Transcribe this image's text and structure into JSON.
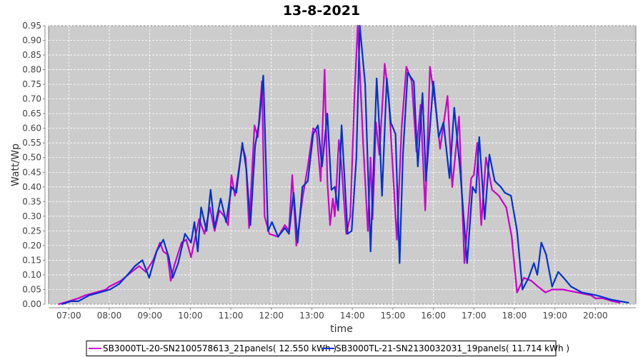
{
  "chart_data": {
    "type": "line",
    "title": "13-8-2021",
    "xlabel": "time",
    "ylabel": "Watt/Wp",
    "xlim": [
      "06:30",
      "21:00"
    ],
    "ylim": [
      0,
      0.95
    ],
    "x_ticks": [
      "07:00",
      "08:00",
      "09:00",
      "10:00",
      "11:00",
      "12:00",
      "13:00",
      "14:00",
      "15:00",
      "16:00",
      "17:00",
      "18:00",
      "19:00",
      "20:00"
    ],
    "y_ticks": [
      "0.00",
      "0.05",
      "0.10",
      "0.15",
      "0.20",
      "0.25",
      "0.30",
      "0.35",
      "0.40",
      "0.45",
      "0.50",
      "0.55",
      "0.60",
      "0.65",
      "0.70",
      "0.75",
      "0.80",
      "0.85",
      "0.90",
      "0.95"
    ],
    "grid": true,
    "background": "#cccccc",
    "legend_position": "bottom",
    "series": [
      {
        "name": "SB3000TL-20-SN2100578613_21panels( 12.550 kWh )",
        "color": "#cc00cc",
        "points": [
          [
            "06:45",
            0
          ],
          [
            "07:00",
            0.01
          ],
          [
            "07:14",
            0.02
          ],
          [
            "07:24",
            0.03
          ],
          [
            "07:40",
            0.04
          ],
          [
            "07:55",
            0.05
          ],
          [
            "08:00",
            0.06
          ],
          [
            "08:17",
            0.08
          ],
          [
            "08:33",
            0.11
          ],
          [
            "08:44",
            0.13
          ],
          [
            "08:54",
            0.11
          ],
          [
            "09:05",
            0.15
          ],
          [
            "09:15",
            0.21
          ],
          [
            "09:20",
            0.18
          ],
          [
            "09:26",
            0.17
          ],
          [
            "09:31",
            0.08
          ],
          [
            "09:36",
            0.13
          ],
          [
            "09:47",
            0.21
          ],
          [
            "09:54",
            0.22
          ],
          [
            "10:01",
            0.16
          ],
          [
            "10:13",
            0.29
          ],
          [
            "10:21",
            0.24
          ],
          [
            "10:29",
            0.33
          ],
          [
            "10:36",
            0.25
          ],
          [
            "10:43",
            0.32
          ],
          [
            "10:50",
            0.3
          ],
          [
            "10:56",
            0.27
          ],
          [
            "11:01",
            0.44
          ],
          [
            "11:06",
            0.37
          ],
          [
            "11:17",
            0.54
          ],
          [
            "11:22",
            0.5
          ],
          [
            "11:27",
            0.26
          ],
          [
            "11:35",
            0.61
          ],
          [
            "11:40",
            0.57
          ],
          [
            "11:46",
            0.76
          ],
          [
            "11:50",
            0.3
          ],
          [
            "11:57",
            0.24
          ],
          [
            "12:10",
            0.23
          ],
          [
            "12:20",
            0.27
          ],
          [
            "12:26",
            0.25
          ],
          [
            "12:31",
            0.44
          ],
          [
            "12:37",
            0.2
          ],
          [
            "12:46",
            0.36
          ],
          [
            "12:54",
            0.47
          ],
          [
            "13:02",
            0.6
          ],
          [
            "13:07",
            0.59
          ],
          [
            "13:13",
            0.42
          ],
          [
            "13:19",
            0.8
          ],
          [
            "13:23",
            0.42
          ],
          [
            "13:27",
            0.27
          ],
          [
            "13:31",
            0.36
          ],
          [
            "13:34",
            0.3
          ],
          [
            "13:40",
            0.56
          ],
          [
            "13:44",
            0.47
          ],
          [
            "13:51",
            0.24
          ],
          [
            "13:57",
            0.3
          ],
          [
            "14:03",
            0.7
          ],
          [
            "14:08",
            0.95
          ],
          [
            "14:16",
            0.55
          ],
          [
            "14:23",
            0.25
          ],
          [
            "14:27",
            0.5
          ],
          [
            "14:30",
            0.29
          ],
          [
            "14:35",
            0.62
          ],
          [
            "14:40",
            0.51
          ],
          [
            "14:48",
            0.82
          ],
          [
            "14:54",
            0.7
          ],
          [
            "15:01",
            0.42
          ],
          [
            "15:06",
            0.22
          ],
          [
            "15:13",
            0.6
          ],
          [
            "15:20",
            0.81
          ],
          [
            "15:28",
            0.76
          ],
          [
            "15:35",
            0.52
          ],
          [
            "15:41",
            0.68
          ],
          [
            "15:48",
            0.32
          ],
          [
            "15:55",
            0.81
          ],
          [
            "16:03",
            0.68
          ],
          [
            "16:10",
            0.53
          ],
          [
            "16:21",
            0.71
          ],
          [
            "16:28",
            0.4
          ],
          [
            "16:38",
            0.64
          ],
          [
            "16:46",
            0.14
          ],
          [
            "16:56",
            0.43
          ],
          [
            "17:00",
            0.44
          ],
          [
            "17:05",
            0.55
          ],
          [
            "17:11",
            0.27
          ],
          [
            "17:18",
            0.5
          ],
          [
            "17:27",
            0.39
          ],
          [
            "17:37",
            0.37
          ],
          [
            "17:48",
            0.33
          ],
          [
            "17:56",
            0.23
          ],
          [
            "18:04",
            0.04
          ],
          [
            "18:14",
            0.09
          ],
          [
            "18:25",
            0.08
          ],
          [
            "18:35",
            0.06
          ],
          [
            "18:46",
            0.04
          ],
          [
            "18:56",
            0.05
          ],
          [
            "19:12",
            0.05
          ],
          [
            "19:33",
            0.04
          ],
          [
            "19:54",
            0.03
          ],
          [
            "20:00",
            0.02
          ],
          [
            "20:11",
            0.02
          ],
          [
            "20:26",
            0.01
          ],
          [
            "20:36",
            0.005
          ]
        ]
      },
      {
        "name": "SB3000TL-21-SN2130032031_19panels( 11.714 kWh )",
        "color": "#0033cc",
        "points": [
          [
            "06:50",
            0
          ],
          [
            "07:03",
            0.01
          ],
          [
            "07:14",
            0.01
          ],
          [
            "07:30",
            0.03
          ],
          [
            "07:46",
            0.04
          ],
          [
            "08:01",
            0.05
          ],
          [
            "08:15",
            0.07
          ],
          [
            "08:27",
            0.1
          ],
          [
            "08:38",
            0.13
          ],
          [
            "08:49",
            0.15
          ],
          [
            "08:59",
            0.09
          ],
          [
            "09:10",
            0.18
          ],
          [
            "09:20",
            0.22
          ],
          [
            "09:28",
            0.16
          ],
          [
            "09:34",
            0.09
          ],
          [
            "09:42",
            0.14
          ],
          [
            "09:52",
            0.24
          ],
          [
            "10:01",
            0.21
          ],
          [
            "10:06",
            0.28
          ],
          [
            "10:11",
            0.18
          ],
          [
            "10:16",
            0.33
          ],
          [
            "10:24",
            0.25
          ],
          [
            "10:30",
            0.39
          ],
          [
            "10:36",
            0.26
          ],
          [
            "10:45",
            0.36
          ],
          [
            "10:53",
            0.28
          ],
          [
            "11:01",
            0.4
          ],
          [
            "11:08",
            0.38
          ],
          [
            "11:17",
            0.55
          ],
          [
            "11:23",
            0.46
          ],
          [
            "11:29",
            0.27
          ],
          [
            "11:36",
            0.54
          ],
          [
            "11:42",
            0.62
          ],
          [
            "11:48",
            0.78
          ],
          [
            "11:55",
            0.25
          ],
          [
            "12:01",
            0.28
          ],
          [
            "12:10",
            0.23
          ],
          [
            "12:20",
            0.26
          ],
          [
            "12:26",
            0.24
          ],
          [
            "12:33",
            0.38
          ],
          [
            "12:39",
            0.21
          ],
          [
            "12:46",
            0.4
          ],
          [
            "12:54",
            0.42
          ],
          [
            "13:02",
            0.58
          ],
          [
            "13:09",
            0.61
          ],
          [
            "13:15",
            0.47
          ],
          [
            "13:23",
            0.65
          ],
          [
            "13:29",
            0.39
          ],
          [
            "13:34",
            0.4
          ],
          [
            "13:39",
            0.32
          ],
          [
            "13:44",
            0.61
          ],
          [
            "13:53",
            0.24
          ],
          [
            "13:59",
            0.25
          ],
          [
            "14:06",
            0.5
          ],
          [
            "14:11",
            0.95
          ],
          [
            "14:19",
            0.75
          ],
          [
            "14:27",
            0.18
          ],
          [
            "14:36",
            0.77
          ],
          [
            "14:40",
            0.6
          ],
          [
            "14:44",
            0.37
          ],
          [
            "14:51",
            0.77
          ],
          [
            "14:57",
            0.62
          ],
          [
            "15:04",
            0.58
          ],
          [
            "15:10",
            0.14
          ],
          [
            "15:15",
            0.51
          ],
          [
            "15:22",
            0.79
          ],
          [
            "15:31",
            0.76
          ],
          [
            "15:37",
            0.47
          ],
          [
            "15:44",
            0.72
          ],
          [
            "15:49",
            0.42
          ],
          [
            "16:00",
            0.76
          ],
          [
            "16:08",
            0.57
          ],
          [
            "16:15",
            0.62
          ],
          [
            "16:24",
            0.43
          ],
          [
            "16:31",
            0.67
          ],
          [
            "16:40",
            0.45
          ],
          [
            "16:50",
            0.14
          ],
          [
            "16:58",
            0.4
          ],
          [
            "17:03",
            0.38
          ],
          [
            "17:08",
            0.57
          ],
          [
            "17:16",
            0.29
          ],
          [
            "17:23",
            0.51
          ],
          [
            "17:31",
            0.42
          ],
          [
            "17:40",
            0.4
          ],
          [
            "17:46",
            0.38
          ],
          [
            "17:55",
            0.37
          ],
          [
            "18:04",
            0.25
          ],
          [
            "18:12",
            0.05
          ],
          [
            "18:21",
            0.09
          ],
          [
            "18:29",
            0.14
          ],
          [
            "18:34",
            0.1
          ],
          [
            "18:40",
            0.21
          ],
          [
            "18:47",
            0.17
          ],
          [
            "18:56",
            0.06
          ],
          [
            "19:05",
            0.11
          ],
          [
            "19:13",
            0.09
          ],
          [
            "19:24",
            0.06
          ],
          [
            "19:40",
            0.04
          ],
          [
            "20:02",
            0.03
          ],
          [
            "20:24",
            0.015
          ],
          [
            "20:49",
            0.005
          ]
        ]
      }
    ]
  }
}
